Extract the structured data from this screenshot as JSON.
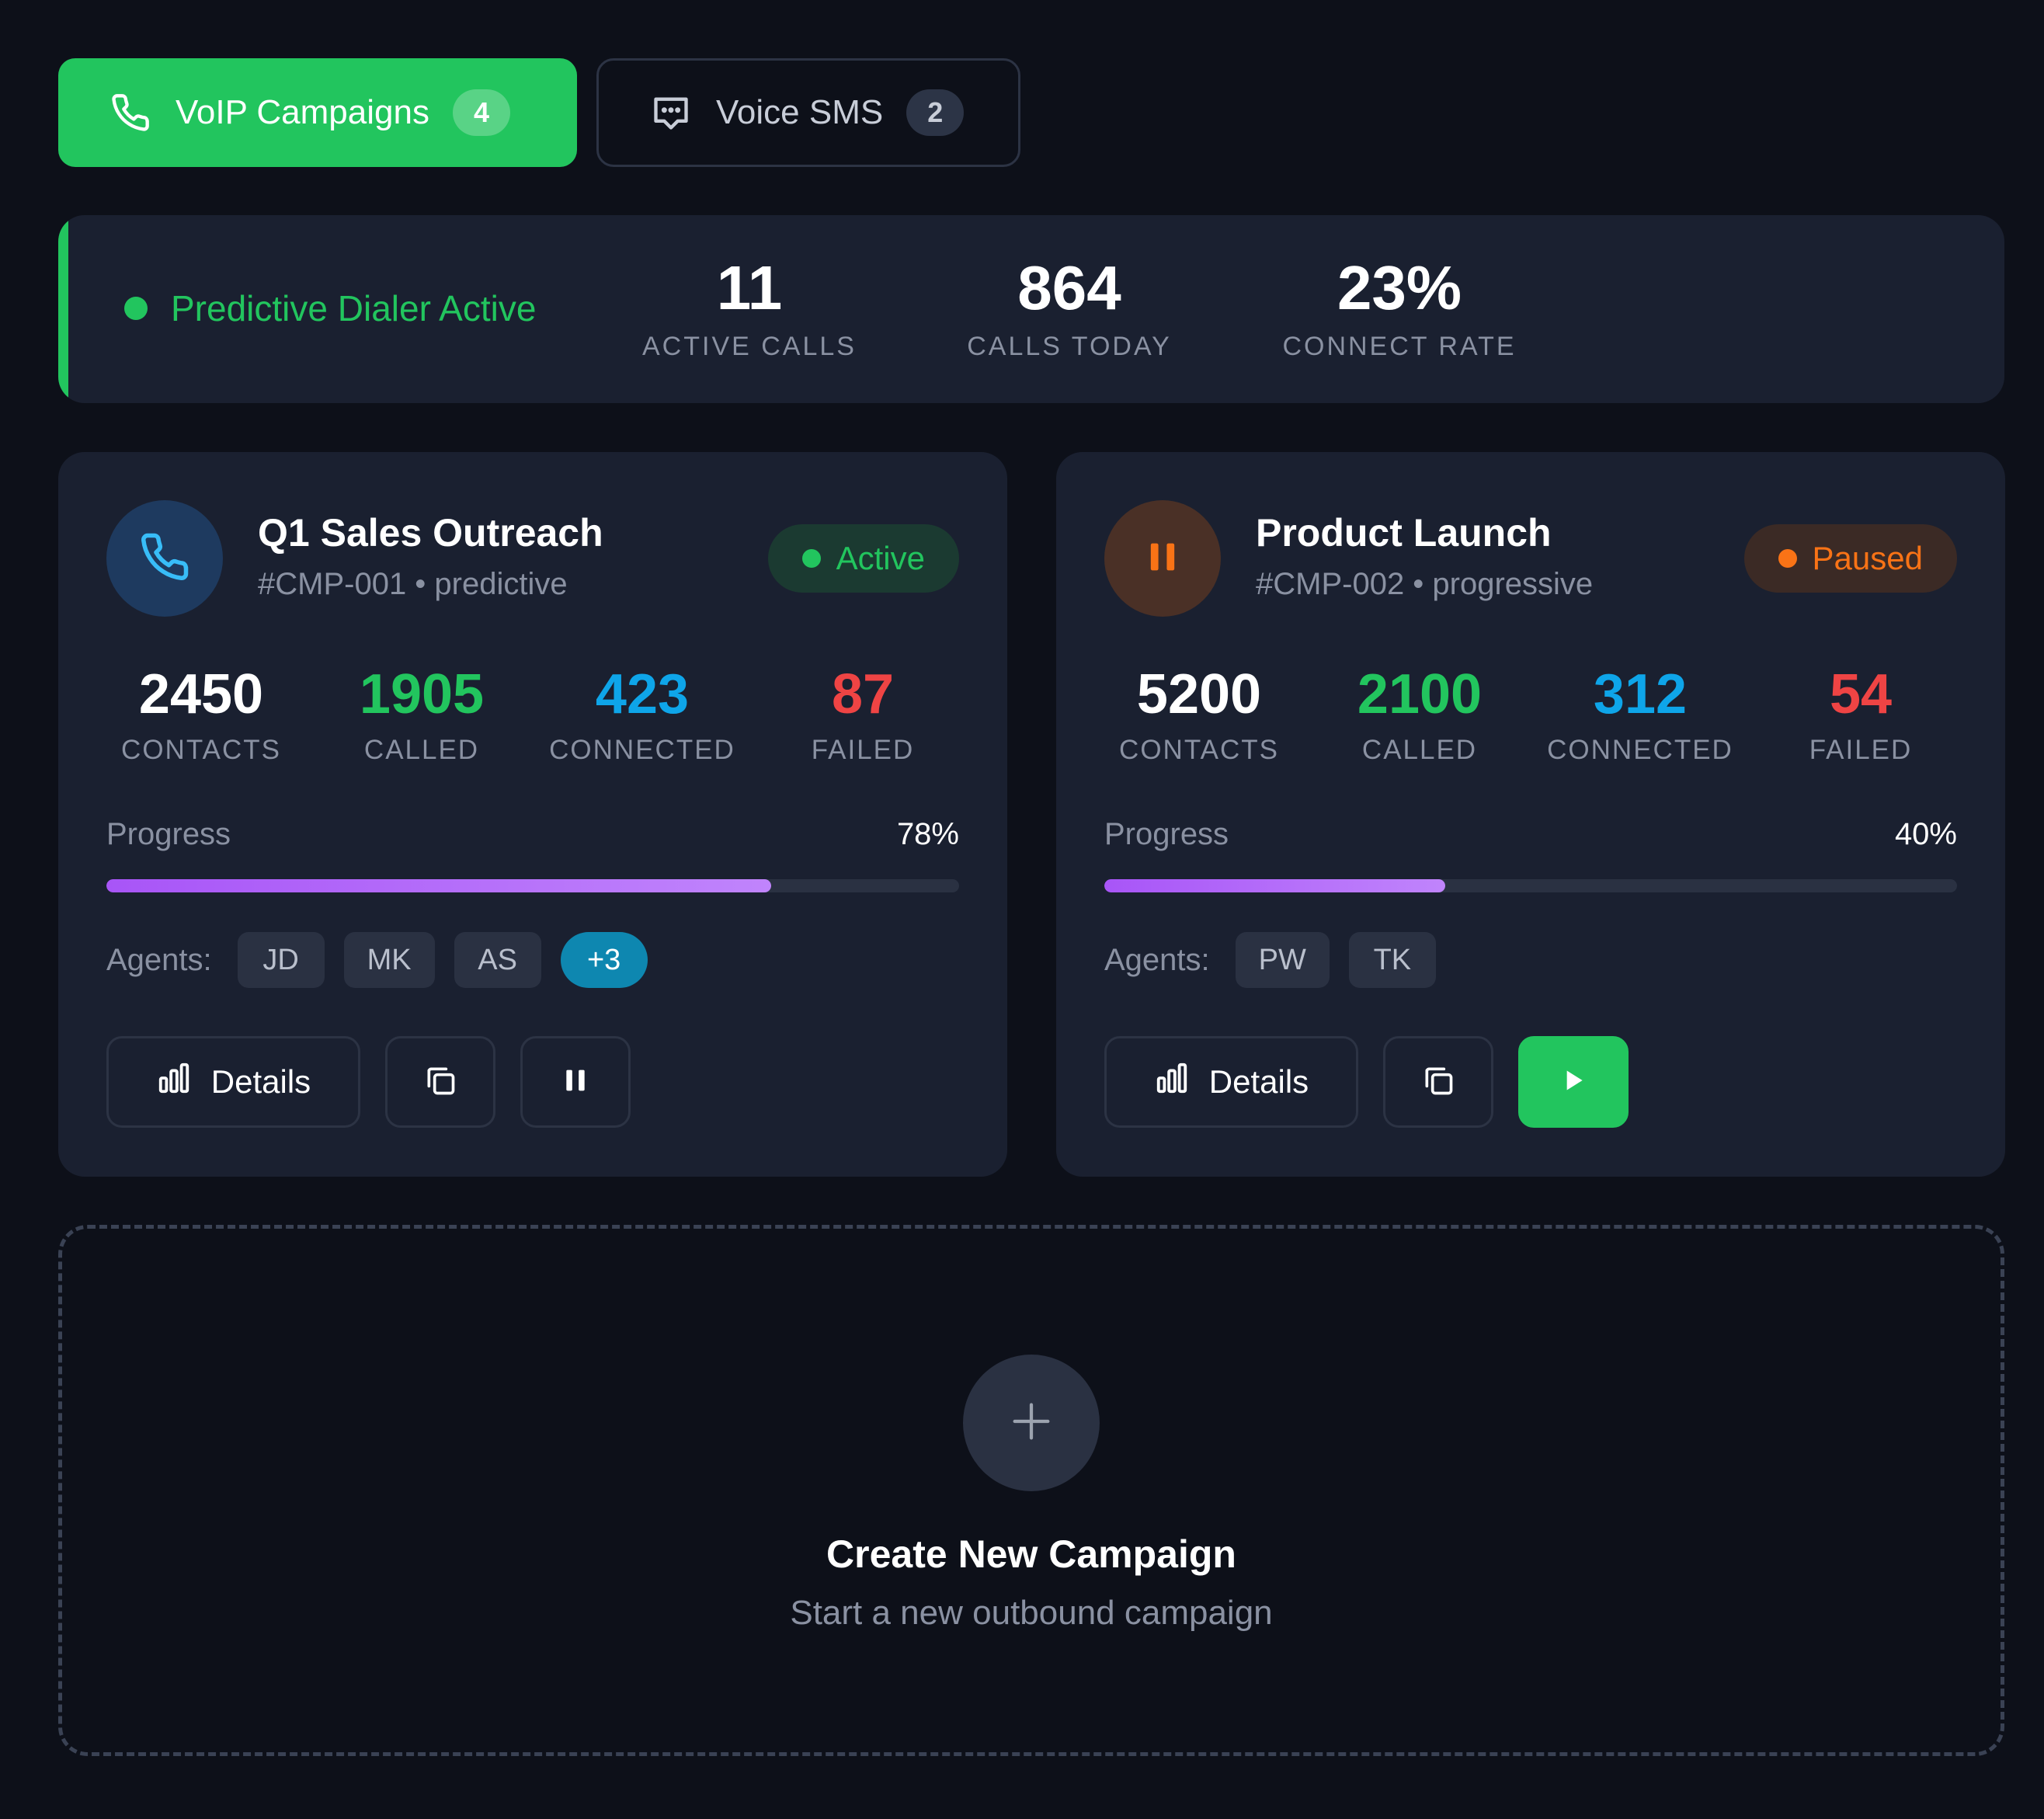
{
  "tabs": {
    "voip": {
      "label": "VoIP Campaigns",
      "count": "4"
    },
    "sms": {
      "label": "Voice SMS",
      "count": "2"
    }
  },
  "banner": {
    "status": "Predictive Dialer Active",
    "stats": [
      {
        "value": "11",
        "label": "ACTIVE CALLS"
      },
      {
        "value": "864",
        "label": "CALLS TODAY"
      },
      {
        "value": "23%",
        "label": "CONNECT RATE"
      }
    ]
  },
  "campaigns": [
    {
      "title": "Q1 Sales Outreach",
      "subtitle": "#CMP-001 • predictive",
      "status": "Active",
      "stats": {
        "contacts": {
          "value": "2450",
          "label": "CONTACTS"
        },
        "called": {
          "value": "1905",
          "label": "CALLED"
        },
        "connected": {
          "value": "423",
          "label": "CONNECTED"
        },
        "failed": {
          "value": "87",
          "label": "FAILED"
        }
      },
      "progress_label": "Progress",
      "progress_text": "78%",
      "progress": 0.78,
      "agents_label": "Agents:",
      "agents": [
        "JD",
        "MK",
        "AS"
      ],
      "agents_more": "+3",
      "details_label": "Details"
    },
    {
      "title": "Product Launch",
      "subtitle": "#CMP-002 • progressive",
      "status": "Paused",
      "stats": {
        "contacts": {
          "value": "5200",
          "label": "CONTACTS"
        },
        "called": {
          "value": "2100",
          "label": "CALLED"
        },
        "connected": {
          "value": "312",
          "label": "CONNECTED"
        },
        "failed": {
          "value": "54",
          "label": "FAILED"
        }
      },
      "progress_label": "Progress",
      "progress_text": "40%",
      "progress": 0.4,
      "agents_label": "Agents:",
      "agents": [
        "PW",
        "TK"
      ],
      "details_label": "Details"
    }
  ],
  "create": {
    "title": "Create New Campaign",
    "subtitle": "Start a new outbound campaign"
  },
  "colors": {
    "green": "#22c55e",
    "cyan": "#0ea5e9",
    "red": "#ef4444",
    "orange": "#f97316",
    "purple": "#a855f7"
  },
  "icons": [
    "phone-icon",
    "message-icon",
    "pause-icon",
    "bar-chart-icon",
    "copy-icon",
    "play-icon",
    "plus-icon"
  ]
}
